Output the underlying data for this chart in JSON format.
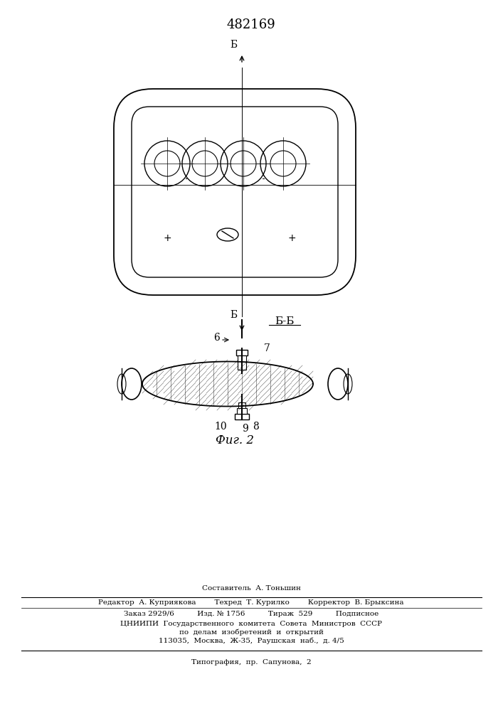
{
  "title_number": "482169",
  "fig_label": "Фиг. 2",
  "section_label": "Б-Б",
  "bg_color": "#ffffff",
  "line_color": "#000000",
  "footer_lines": [
    "Составитель  А. Тоньшин",
    "Редактор  А. Куприякова        Техред  Т. Курилко        Корректор  В. Брыксина",
    "Заказ 2929/6          Изд. № 1756          Тираж  529          Подписное",
    "ЦНИИПИ  Государственного  комитета  Совета  Министров  СССР",
    "по  делам  изобретений  и  открытий",
    "113035,  Москва,  Ж-35,  Раушская  наб.,  д. 4/5",
    "Типография,  пр.  Сапунова,  2"
  ]
}
